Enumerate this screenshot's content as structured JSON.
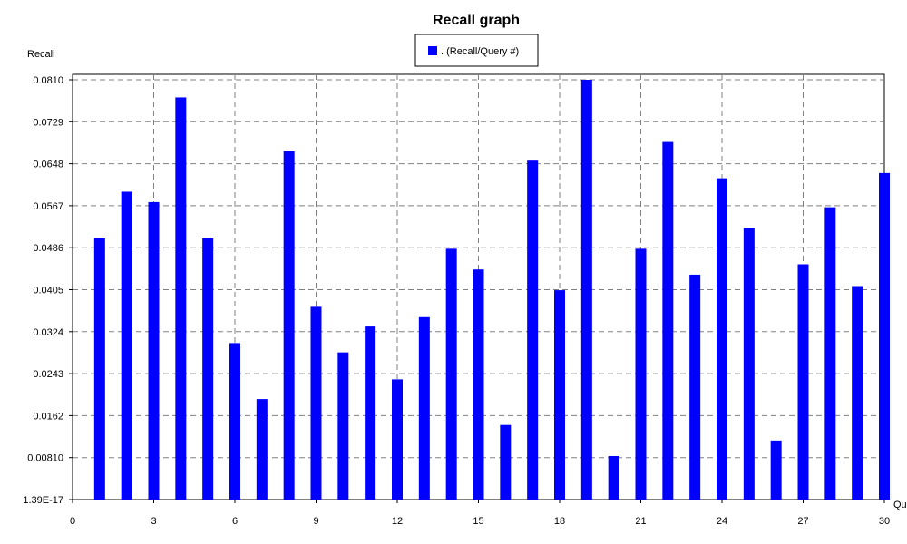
{
  "chart_data": {
    "type": "bar",
    "title": "Recall graph",
    "ylabel": "Recall",
    "xlabel": "Qu",
    "legend": {
      "label": ". (Recall/Query #)",
      "placement": "top-center"
    },
    "grid": true,
    "bar_color": "#0000ff",
    "x": [
      1,
      2,
      3,
      4,
      5,
      6,
      7,
      8,
      9,
      10,
      11,
      12,
      13,
      14,
      15,
      16,
      17,
      18,
      19,
      20,
      21,
      22,
      23,
      24,
      25,
      26,
      27,
      28,
      29,
      30
    ],
    "values": [
      0.0504,
      0.0594,
      0.0574,
      0.0776,
      0.0504,
      0.0302,
      0.0194,
      0.0672,
      0.0372,
      0.0284,
      0.0334,
      0.0232,
      0.0352,
      0.0484,
      0.0444,
      0.0144,
      0.0654,
      0.0404,
      0.081,
      0.0084,
      0.0484,
      0.069,
      0.0434,
      0.062,
      0.0524,
      0.0114,
      0.0454,
      0.0564,
      0.0412,
      0.063
    ],
    "xlim": [
      0,
      30
    ],
    "ylim": [
      0,
      0.081
    ],
    "x_ticks": [
      0,
      3,
      6,
      9,
      12,
      15,
      18,
      21,
      24,
      27,
      30
    ],
    "y_tick_values": [
      0,
      0.0081,
      0.0162,
      0.0243,
      0.0324,
      0.0405,
      0.0486,
      0.0567,
      0.0648,
      0.0729,
      0.081
    ],
    "y_tick_labels": [
      "1.39E-17",
      "0.00810",
      "0.0162",
      "0.0243",
      "0.0324",
      "0.0405",
      "0.0486",
      "0.0567",
      "0.0648",
      "0.0729",
      "0.0810"
    ]
  }
}
